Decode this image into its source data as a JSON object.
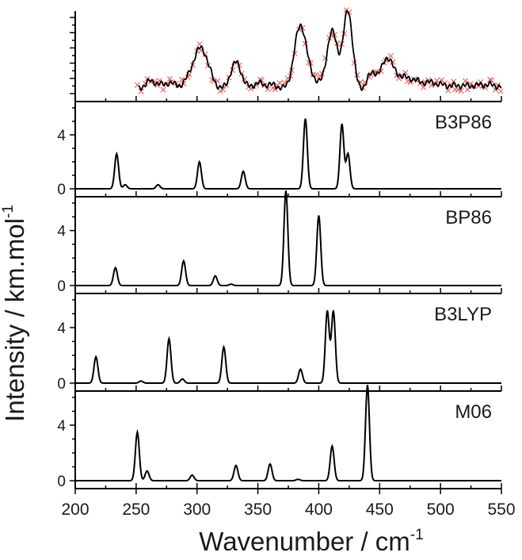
{
  "chart_data": {
    "type": "line",
    "xlabel": "Wavenumber / cm",
    "xlabel_sup": "-1",
    "ylabel": "Intensity / km.mol",
    "ylabel_sup": "-1",
    "xlim": [
      200,
      550
    ],
    "xticks": [
      200,
      250,
      300,
      350,
      400,
      450,
      500,
      550
    ],
    "xtick_labels": [
      "200",
      "250",
      "300",
      "350",
      "400",
      "450",
      "500",
      "550"
    ],
    "grid": false,
    "colors": {
      "experimental_markers": "#e8615e",
      "lines": "#000000"
    },
    "panels": [
      {
        "label": "",
        "kind": "experimental",
        "ylim": [
          0,
          10
        ],
        "xrange": [
          252,
          550
        ],
        "peaks": [
          {
            "x": 260,
            "y": 1.1,
            "w": 3.2
          },
          {
            "x": 268,
            "y": 0.9,
            "w": 3.2
          },
          {
            "x": 278,
            "y": 1.0,
            "w": 3.5
          },
          {
            "x": 290,
            "y": 0.5,
            "w": 4.5
          },
          {
            "x": 303,
            "y": 5.5,
            "w": 6.5
          },
          {
            "x": 332,
            "y": 3.6,
            "w": 4.5
          },
          {
            "x": 350,
            "y": 0.8,
            "w": 5
          },
          {
            "x": 362,
            "y": 0.6,
            "w": 5
          },
          {
            "x": 385,
            "y": 8.5,
            "w": 5
          },
          {
            "x": 396,
            "y": 1.0,
            "w": 4
          },
          {
            "x": 411,
            "y": 7.6,
            "w": 4.5
          },
          {
            "x": 424,
            "y": 10.3,
            "w": 3.8
          },
          {
            "x": 444,
            "y": 2.2,
            "w": 4
          },
          {
            "x": 456,
            "y": 4.0,
            "w": 4.5
          },
          {
            "x": 466,
            "y": 1.5,
            "w": 5
          },
          {
            "x": 476,
            "y": 1.0,
            "w": 5
          },
          {
            "x": 490,
            "y": 0.9,
            "w": 9
          },
          {
            "x": 515,
            "y": 0.5,
            "w": 12
          },
          {
            "x": 540,
            "y": 0.6,
            "w": 10
          }
        ],
        "baseline": 0.5,
        "noise": 0.7,
        "points": 120
      },
      {
        "label": "B3P86",
        "kind": "computed",
        "ylim": [
          0,
          6
        ],
        "yticks": [
          0,
          4
        ],
        "ytick_labels": [
          "0",
          "4"
        ],
        "peaks": [
          {
            "x": 234,
            "y": 2.6,
            "w": 1.6
          },
          {
            "x": 241,
            "y": 0.3,
            "w": 1.6
          },
          {
            "x": 268,
            "y": 0.3,
            "w": 1.6
          },
          {
            "x": 302,
            "y": 2.0,
            "w": 1.6
          },
          {
            "x": 338,
            "y": 1.3,
            "w": 1.6
          },
          {
            "x": 389,
            "y": 5.2,
            "w": 1.6
          },
          {
            "x": 419,
            "y": 4.8,
            "w": 1.6
          },
          {
            "x": 424,
            "y": 2.6,
            "w": 1.6
          }
        ]
      },
      {
        "label": "BP86",
        "kind": "computed",
        "ylim": [
          0,
          6
        ],
        "yticks": [
          0,
          4
        ],
        "ytick_labels": [
          "0",
          "4"
        ],
        "peaks": [
          {
            "x": 233,
            "y": 1.3,
            "w": 1.6
          },
          {
            "x": 289,
            "y": 1.8,
            "w": 1.6
          },
          {
            "x": 315,
            "y": 0.7,
            "w": 1.6
          },
          {
            "x": 328,
            "y": 0.1,
            "w": 1.6
          },
          {
            "x": 373,
            "y": 6.9,
            "w": 1.6
          },
          {
            "x": 400,
            "y": 5.1,
            "w": 1.6
          }
        ]
      },
      {
        "label": "B3LYP",
        "kind": "computed",
        "ylim": [
          0,
          6
        ],
        "yticks": [
          0,
          4
        ],
        "ytick_labels": [
          "0",
          "4"
        ],
        "peaks": [
          {
            "x": 217,
            "y": 1.9,
            "w": 1.6
          },
          {
            "x": 254,
            "y": 0.15,
            "w": 1.6
          },
          {
            "x": 277,
            "y": 3.2,
            "w": 1.6
          },
          {
            "x": 288,
            "y": 0.3,
            "w": 1.6
          },
          {
            "x": 322,
            "y": 2.6,
            "w": 1.6
          },
          {
            "x": 385,
            "y": 1.0,
            "w": 1.6
          },
          {
            "x": 407,
            "y": 5.2,
            "w": 1.6
          },
          {
            "x": 412,
            "y": 5.2,
            "w": 1.6
          }
        ]
      },
      {
        "label": "M06",
        "kind": "computed",
        "ylim": [
          0,
          6
        ],
        "yticks": [
          0,
          4
        ],
        "ytick_labels": [
          "0",
          "4"
        ],
        "peaks": [
          {
            "x": 251,
            "y": 3.5,
            "w": 1.6
          },
          {
            "x": 259,
            "y": 0.7,
            "w": 1.6
          },
          {
            "x": 296,
            "y": 0.4,
            "w": 1.6
          },
          {
            "x": 332,
            "y": 1.1,
            "w": 1.6
          },
          {
            "x": 360,
            "y": 1.2,
            "w": 1.6
          },
          {
            "x": 383,
            "y": 0.1,
            "w": 1.6
          },
          {
            "x": 411,
            "y": 2.5,
            "w": 1.6
          },
          {
            "x": 440,
            "y": 6.9,
            "w": 1.6
          }
        ]
      }
    ]
  }
}
